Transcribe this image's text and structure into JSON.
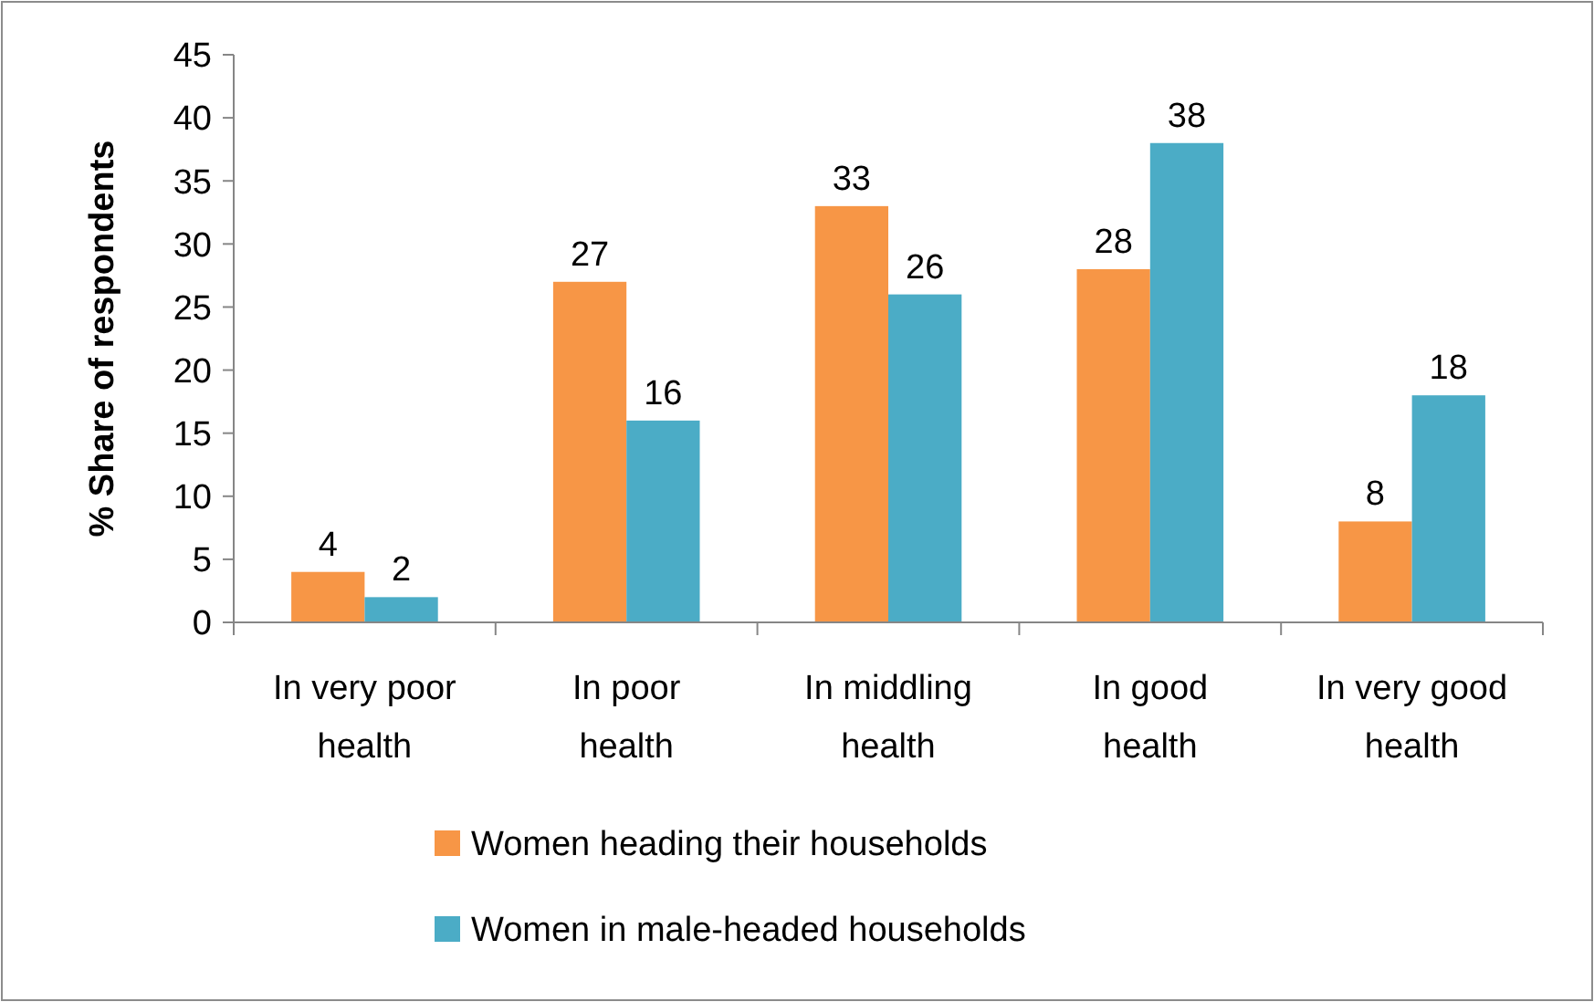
{
  "chart_data": {
    "type": "bar",
    "ylabel": "% Share of respondents",
    "categories": [
      "In very poor health",
      "In poor health",
      "In middling health",
      "In good health",
      "In very good health"
    ],
    "series": [
      {
        "name": "Women heading their households",
        "color": "#f79646",
        "values": [
          4,
          27,
          33,
          28,
          8
        ]
      },
      {
        "name": "Women in male-headed households",
        "color": "#4bacc6",
        "values": [
          2,
          16,
          26,
          38,
          18
        ]
      }
    ],
    "ylim": [
      0,
      45
    ],
    "yticks": [
      0,
      5,
      10,
      15,
      20,
      25,
      30,
      35,
      40,
      45
    ],
    "grid": false,
    "legend": "bottom",
    "data_labels": true
  }
}
